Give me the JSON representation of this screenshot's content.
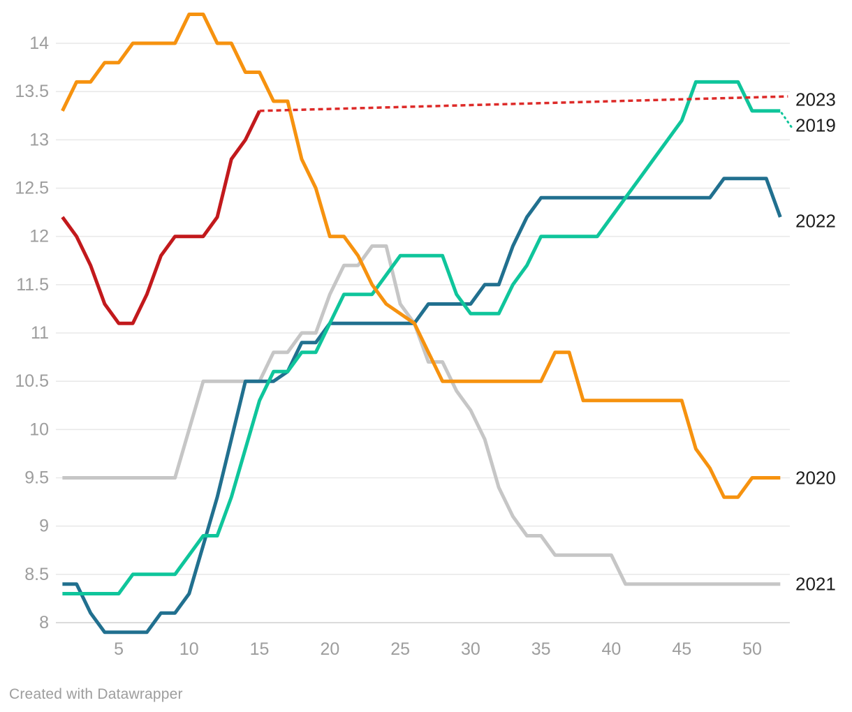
{
  "footer": {
    "credit": "Created with Datawrapper"
  },
  "chart_data": {
    "type": "line",
    "title": "",
    "xlabel": "",
    "ylabel": "",
    "x_range": [
      1,
      52
    ],
    "y_range": [
      7.9,
      14.3
    ],
    "x_ticks": [
      5,
      10,
      15,
      20,
      25,
      30,
      35,
      40,
      45,
      50
    ],
    "y_ticks": [
      8,
      8.5,
      9,
      9.5,
      10,
      10.5,
      11,
      11.5,
      12,
      12.5,
      13,
      13.5,
      14
    ],
    "grid": "horizontal",
    "legend_position": "right-edge-labels",
    "colors": {
      "grid": "#e9e9e9",
      "baseline": "#cfcfcf",
      "tick_text": "#9d9d9d",
      "label_text": "#1d1d1d"
    },
    "series": [
      {
        "name": "2021",
        "color": "#c6c6c6",
        "label_value": 8.4,
        "values": [
          9.5,
          9.5,
          9.5,
          9.5,
          9.5,
          9.5,
          9.5,
          9.5,
          9.5,
          10.0,
          10.5,
          10.5,
          10.5,
          10.5,
          10.5,
          10.8,
          10.8,
          11.0,
          11.0,
          11.4,
          11.7,
          11.7,
          11.9,
          11.9,
          11.3,
          11.1,
          10.7,
          10.7,
          10.4,
          10.2,
          9.9,
          9.4,
          9.1,
          8.9,
          8.9,
          8.7,
          8.7,
          8.7,
          8.7,
          8.7,
          8.4,
          8.4,
          8.4,
          8.4,
          8.4,
          8.4,
          8.4,
          8.4,
          8.4,
          8.4,
          8.4,
          8.4
        ]
      },
      {
        "name": "2022",
        "color": "#21708f",
        "label_value": 12.16,
        "values": [
          8.4,
          8.4,
          8.1,
          7.9,
          7.9,
          7.9,
          7.9,
          8.1,
          8.1,
          8.3,
          8.8,
          9.3,
          9.9,
          10.5,
          10.5,
          10.5,
          10.6,
          10.9,
          10.9,
          11.1,
          11.1,
          11.1,
          11.1,
          11.1,
          11.1,
          11.1,
          11.3,
          11.3,
          11.3,
          11.3,
          11.5,
          11.5,
          11.9,
          12.2,
          12.4,
          12.4,
          12.4,
          12.4,
          12.4,
          12.4,
          12.4,
          12.4,
          12.4,
          12.4,
          12.4,
          12.4,
          12.4,
          12.6,
          12.6,
          12.6,
          12.6,
          12.2
        ]
      },
      {
        "name": "2019",
        "color": "#0fc59b",
        "label_value": 13.15,
        "dotted_leader": true,
        "values": [
          8.3,
          8.3,
          8.3,
          8.3,
          8.3,
          8.5,
          8.5,
          8.5,
          8.5,
          8.7,
          8.9,
          8.9,
          9.3,
          9.8,
          10.3,
          10.6,
          10.6,
          10.8,
          10.8,
          11.1,
          11.4,
          11.4,
          11.4,
          11.6,
          11.8,
          11.8,
          11.8,
          11.8,
          11.4,
          11.2,
          11.2,
          11.2,
          11.5,
          11.7,
          12.0,
          12.0,
          12.0,
          12.0,
          12.0,
          12.2,
          12.4,
          12.6,
          12.8,
          13.0,
          13.2,
          13.6,
          13.6,
          13.6,
          13.6,
          13.3,
          13.3,
          13.3
        ]
      },
      {
        "name": "2020",
        "color": "#f6920f",
        "label_value": 9.5,
        "values": [
          13.3,
          13.6,
          13.6,
          13.8,
          13.8,
          14.0,
          14.0,
          14.0,
          14.0,
          14.3,
          14.3,
          14.0,
          14.0,
          13.7,
          13.7,
          13.4,
          13.4,
          12.8,
          12.5,
          12.0,
          12.0,
          11.8,
          11.5,
          11.3,
          11.2,
          11.1,
          10.8,
          10.5,
          10.5,
          10.5,
          10.5,
          10.5,
          10.5,
          10.5,
          10.5,
          10.8,
          10.8,
          10.3,
          10.3,
          10.3,
          10.3,
          10.3,
          10.3,
          10.3,
          10.3,
          9.8,
          9.6,
          9.3,
          9.3,
          9.5,
          9.5,
          9.5
        ]
      },
      {
        "name": "2023",
        "color": "#c2191c",
        "label_value": 13.42,
        "values": [
          12.2,
          12.0,
          11.7,
          11.3,
          11.1,
          11.1,
          11.4,
          11.8,
          12.0,
          12.0,
          12.0,
          12.2,
          12.8,
          13.0,
          13.3
        ]
      }
    ],
    "projection": {
      "series": "2023",
      "color": "#dd2a28",
      "style": "dashed",
      "points": [
        [
          15,
          13.3
        ],
        [
          52,
          13.45
        ]
      ]
    }
  }
}
